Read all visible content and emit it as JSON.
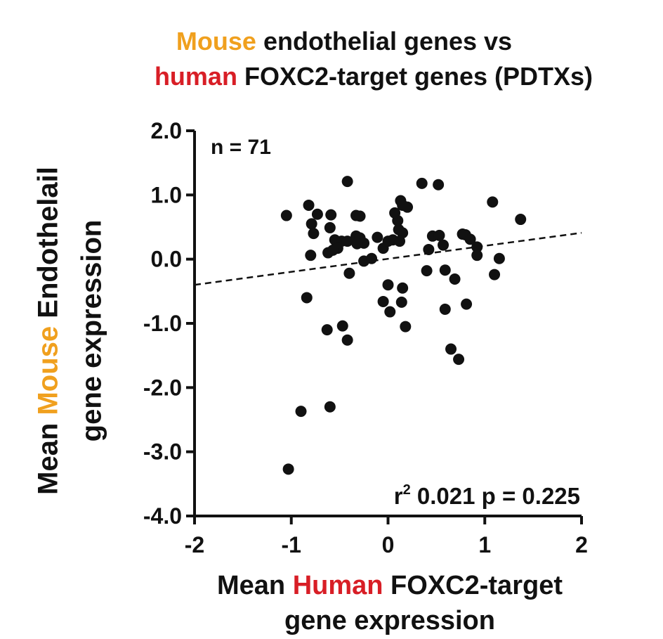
{
  "title": {
    "line1_highlight": "Mouse",
    "line1_rest": " endothelial genes vs",
    "line2_highlight": "human",
    "line2_rest": " FOXC2-target genes (PDTXs)"
  },
  "xlabel": {
    "line1_pre": "Mean ",
    "line1_highlight": "Human",
    "line1_post": " FOXC2-target",
    "line2": "gene expression"
  },
  "ylabel": {
    "line1_pre": "Mean ",
    "line1_highlight": "Mouse",
    "line1_post": " Endothelail",
    "line2": "gene expression"
  },
  "annotations": {
    "n": "n = 71",
    "r2_label": "r",
    "r2_sup": "2",
    "stats": " 0.021 p = 0.225"
  },
  "colors": {
    "mouse": "#f0a01e",
    "human": "#d81e26",
    "points": "#111111"
  },
  "chart_data": {
    "type": "scatter",
    "xlim": [
      -2,
      2
    ],
    "ylim": [
      -4,
      2
    ],
    "x_ticks": [
      -2,
      -1,
      0,
      1,
      2
    ],
    "x_tick_labels": [
      "-2",
      "-1",
      "0",
      "1",
      "2"
    ],
    "y_ticks": [
      2,
      1,
      0,
      -1,
      -2,
      -3,
      -4
    ],
    "y_tick_labels": [
      "2.0",
      "1.0",
      "0.0",
      "-1.0",
      "-2.0",
      "-3.0",
      "-4.0"
    ],
    "grid": false,
    "fit_line": {
      "style": "dashed",
      "x": [
        -2,
        2
      ],
      "y": [
        -0.4,
        0.41
      ]
    },
    "points": [
      [
        -1.05,
        0.68
      ],
      [
        -0.82,
        0.84
      ],
      [
        -0.73,
        0.7
      ],
      [
        -0.79,
        0.55
      ],
      [
        -0.77,
        0.4
      ],
      [
        -0.59,
        0.69
      ],
      [
        -0.6,
        0.49
      ],
      [
        -0.55,
        0.3
      ],
      [
        -0.48,
        0.28
      ],
      [
        -0.42,
        0.28
      ],
      [
        -0.52,
        0.17
      ],
      [
        -0.62,
        0.1
      ],
      [
        -0.57,
        0.14
      ],
      [
        -0.8,
        0.06
      ],
      [
        -0.42,
        1.21
      ],
      [
        -0.33,
        0.68
      ],
      [
        -0.29,
        0.67
      ],
      [
        -0.33,
        0.36
      ],
      [
        -0.29,
        0.33
      ],
      [
        -0.25,
        0.25
      ],
      [
        -0.32,
        0.24
      ],
      [
        -0.25,
        -0.03
      ],
      [
        -0.17,
        0.01
      ],
      [
        -0.11,
        0.34
      ],
      [
        -0.05,
        0.17
      ],
      [
        0.05,
        0.3
      ],
      [
        0.1,
        0.6
      ],
      [
        0.07,
        0.72
      ],
      [
        0.13,
        0.91
      ],
      [
        0.15,
        0.84
      ],
      [
        0.2,
        0.81
      ],
      [
        0.11,
        0.46
      ],
      [
        0.15,
        0.41
      ],
      [
        0.12,
        0.28
      ],
      [
        0.0,
        0.28
      ],
      [
        0.35,
        1.18
      ],
      [
        0.52,
        1.16
      ],
      [
        0.46,
        0.36
      ],
      [
        0.53,
        0.37
      ],
      [
        0.57,
        0.22
      ],
      [
        0.42,
        0.15
      ],
      [
        0.77,
        0.39
      ],
      [
        0.8,
        0.38
      ],
      [
        0.85,
        0.31
      ],
      [
        0.92,
        0.19
      ],
      [
        0.92,
        0.06
      ],
      [
        1.08,
        0.89
      ],
      [
        1.15,
        0.01
      ],
      [
        1.37,
        0.62
      ],
      [
        1.1,
        -0.24
      ],
      [
        -0.84,
        -0.6
      ],
      [
        -0.4,
        -0.22
      ],
      [
        0.0,
        -0.4
      ],
      [
        0.15,
        -0.45
      ],
      [
        -0.05,
        -0.66
      ],
      [
        0.14,
        -0.67
      ],
      [
        0.02,
        -0.82
      ],
      [
        0.18,
        -1.05
      ],
      [
        0.4,
        -0.18
      ],
      [
        0.59,
        -0.17
      ],
      [
        0.69,
        -0.31
      ],
      [
        0.59,
        -0.78
      ],
      [
        0.81,
        -0.7
      ],
      [
        -0.63,
        -1.1
      ],
      [
        -0.47,
        -1.04
      ],
      [
        -0.42,
        -1.26
      ],
      [
        0.65,
        -1.4
      ],
      [
        0.73,
        -1.56
      ],
      [
        -0.9,
        -2.37
      ],
      [
        -0.6,
        -2.3
      ],
      [
        -1.03,
        -3.27
      ]
    ]
  }
}
